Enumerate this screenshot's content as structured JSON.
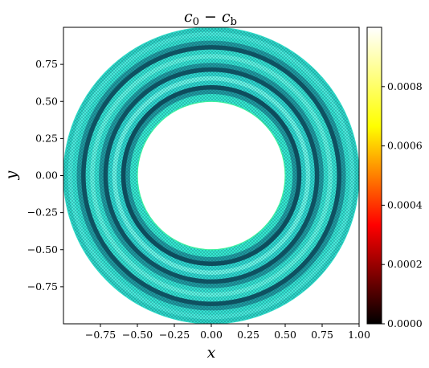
{
  "chart_data": {
    "type": "heatmap",
    "title": "c₀ − c_b",
    "title_main": "c",
    "title_sub0": "0",
    "title_minus": " − ",
    "title_c": "c",
    "title_subb": "b",
    "xlabel": "x",
    "ylabel": "y",
    "xlim": [
      -1.0,
      1.0
    ],
    "ylim": [
      -1.0,
      1.0
    ],
    "x_ticks": [
      -0.75,
      -0.5,
      -0.25,
      0.0,
      0.25,
      0.5,
      0.75,
      1.0
    ],
    "x_tick_labels": [
      "−0.75",
      "−0.50",
      "−0.25",
      "0.00",
      "0.25",
      "0.50",
      "0.75",
      "1.00"
    ],
    "y_ticks": [
      0.75,
      0.5,
      0.25,
      0.0,
      -0.25,
      -0.5,
      -0.75
    ],
    "y_tick_labels": [
      "0.75",
      "0.50",
      "0.25",
      "0.00",
      "−0.25",
      "−0.50",
      "−0.75"
    ],
    "domain": {
      "shape": "annulus",
      "inner_radius": 0.5,
      "outer_radius": 1.0
    },
    "radial_bands": {
      "radius": [
        0.5,
        0.55,
        0.58,
        0.61,
        0.64,
        0.67,
        0.7,
        0.73,
        0.76,
        0.79,
        0.82,
        0.85,
        0.88,
        0.91,
        0.94,
        0.97,
        1.0
      ],
      "fill_color": [
        "#3ef0b8",
        "#34e8d0",
        "#1f9aa0",
        "#0e4f60",
        "#2fd8d0",
        "#6af7e8",
        "#2fd8d0",
        "#0f5565",
        "#1f9aa0",
        "#35e2d2",
        "#5ef4e2",
        "#35e2d2",
        "#0f5565",
        "#1f9aa0",
        "#35e2d2",
        "#48eadb",
        "#2ed5c8"
      ]
    },
    "colorbar": {
      "colormap": "hot",
      "range": [
        0.0,
        0.001
      ],
      "ticks": [
        0.0,
        0.0002,
        0.0004,
        0.0006,
        0.0008
      ],
      "tick_labels": [
        "0.0000",
        "0.0002",
        "0.0004",
        "0.0006",
        "0.0008"
      ],
      "stops": [
        "#000000",
        "#ff0000",
        "#ffff00",
        "#ffffff"
      ]
    }
  }
}
